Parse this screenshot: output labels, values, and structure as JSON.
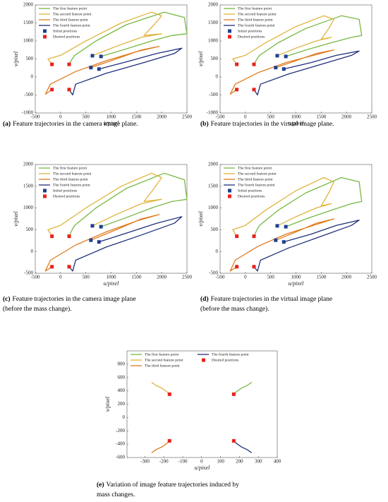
{
  "chart_data": [
    {
      "type": "line",
      "caption_label": "(a)",
      "caption": [
        "Feature trajectories in the camera image plane."
      ],
      "xlabel": "u/pixel",
      "ylabel": "v/pixel",
      "xlim": [
        -500,
        2500
      ],
      "xticks": [
        -500,
        0,
        500,
        1000,
        1500,
        2000,
        2500
      ],
      "ylim": [
        -1000,
        2000
      ],
      "yticks": [
        -1000,
        -500,
        0,
        500,
        1000,
        1500,
        2000
      ],
      "series": [
        {
          "name": "The first feature point",
          "color": "#77b843",
          "x": [
            800,
            1300,
            1800,
            2200,
            2500,
            2450,
            2050,
            1300,
            700,
            280,
            230,
            170
          ],
          "values": [
            570,
            780,
            1000,
            1150,
            1200,
            1650,
            1800,
            1450,
            1000,
            600,
            500,
            350
          ]
        },
        {
          "name": "The second feature point",
          "color": "#e0b43c",
          "x": [
            630,
            1100,
            1600,
            2000,
            1650,
            1850,
            2000,
            1800,
            1200,
            500,
            0,
            -250,
            -170
          ],
          "values": [
            590,
            850,
            1100,
            1200,
            1150,
            1450,
            1700,
            1800,
            1500,
            1000,
            600,
            500,
            350
          ]
        },
        {
          "name": "The third feature point",
          "color": "#e07b1f",
          "x": [
            600,
            1100,
            1600,
            1950,
            1500,
            900,
            300,
            -200,
            -300,
            -170
          ],
          "values": [
            260,
            500,
            750,
            850,
            700,
            450,
            150,
            -200,
            -480,
            -350
          ]
        },
        {
          "name": "The fourth feature point",
          "color": "#1f2f7a",
          "x": [
            760,
            1300,
            1900,
            2400,
            2250,
            1600,
            900,
            300,
            240,
            170
          ],
          "values": [
            220,
            420,
            650,
            800,
            650,
            380,
            100,
            -200,
            -500,
            -350
          ]
        }
      ],
      "points": [
        {
          "name": "Initial positions",
          "color": "#1f3f8f",
          "x": [
            630,
            800,
            600,
            760
          ],
          "values": [
            590,
            570,
            260,
            220
          ]
        },
        {
          "name": "Desired positions",
          "color": "#e8211b",
          "x": [
            -170,
            170,
            -170,
            170
          ],
          "values": [
            350,
            350,
            -350,
            -350
          ]
        }
      ]
    },
    {
      "type": "line",
      "caption_label": "(b)",
      "caption": [
        "Feature trajectories in the virtual image plane."
      ],
      "xlabel": "u/pixel",
      "ylabel": "v/pixel",
      "xlim": [
        -500,
        2500
      ],
      "xticks": [
        -500,
        0,
        500,
        1000,
        1500,
        2000,
        2500
      ],
      "ylim": [
        -1000,
        2000
      ],
      "yticks": [
        -1000,
        -500,
        0,
        500,
        1000,
        1500,
        2000
      ],
      "series": [
        {
          "name": "The first feature point",
          "color": "#77b843",
          "x": [
            800,
            1200,
            1700,
            2100,
            2300,
            2250,
            1900,
            1200,
            650,
            280,
            230,
            170
          ],
          "values": [
            570,
            750,
            950,
            1100,
            1150,
            1600,
            1700,
            1350,
            950,
            600,
            500,
            350
          ]
        },
        {
          "name": "The second feature point",
          "color": "#e0b43c",
          "x": [
            630,
            1000,
            1400,
            1700,
            1500,
            1650,
            1750,
            1550,
            1000,
            400,
            0,
            -250,
            -170
          ],
          "values": [
            590,
            800,
            1000,
            1100,
            1050,
            1350,
            1600,
            1700,
            1400,
            950,
            600,
            500,
            350
          ]
        },
        {
          "name": "The third feature point",
          "color": "#e07b1f",
          "x": [
            600,
            1000,
            1400,
            1750,
            1400,
            800,
            250,
            -200,
            -300,
            -170
          ],
          "values": [
            260,
            450,
            650,
            750,
            620,
            400,
            120,
            -200,
            -480,
            -350
          ]
        },
        {
          "name": "The fourth feature point",
          "color": "#1f2f7a",
          "x": [
            760,
            1300,
            1800,
            2250,
            2100,
            1500,
            850,
            300,
            240,
            170
          ],
          "values": [
            220,
            400,
            600,
            720,
            600,
            350,
            80,
            -200,
            -500,
            -350
          ]
        }
      ],
      "points": [
        {
          "name": "Initial positions",
          "color": "#1f3f8f",
          "x": [
            630,
            800,
            600,
            760
          ],
          "values": [
            590,
            570,
            260,
            220
          ]
        },
        {
          "name": "Desired positions",
          "color": "#e8211b",
          "x": [
            -170,
            170,
            -170,
            170
          ],
          "values": [
            350,
            350,
            -350,
            -350
          ]
        }
      ]
    },
    {
      "type": "line",
      "caption_label": "(c)",
      "caption": [
        "Feature trajectories in the camera image plane",
        "(before the mass change)."
      ],
      "xlabel": "u/pixel",
      "ylabel": "v/pixel",
      "xlim": [
        -500,
        2500
      ],
      "xticks": [
        -500,
        0,
        500,
        1000,
        1500,
        2000,
        2500
      ],
      "ylim": [
        -500,
        2000
      ],
      "yticks": [
        -500,
        0,
        500,
        1000,
        1500,
        2000
      ],
      "series": [
        {
          "name": "The first feature point",
          "color": "#77b843",
          "x": [
            800,
            1300,
            1800,
            2200,
            2500,
            2450,
            2050,
            1300,
            700,
            280,
            230,
            170
          ],
          "values": [
            570,
            780,
            1000,
            1150,
            1200,
            1650,
            1800,
            1450,
            1000,
            600,
            500,
            350
          ]
        },
        {
          "name": "The second feature point",
          "color": "#e0b43c",
          "x": [
            630,
            1100,
            1600,
            2000,
            1650,
            1850,
            2000,
            1800,
            1200,
            500,
            0,
            -250,
            -170
          ],
          "values": [
            590,
            850,
            1100,
            1200,
            1150,
            1450,
            1700,
            1800,
            1500,
            1000,
            600,
            500,
            350
          ]
        },
        {
          "name": "The third feature point",
          "color": "#e07b1f",
          "x": [
            600,
            1100,
            1600,
            1950,
            1500,
            900,
            300,
            -200,
            -300,
            -170
          ],
          "values": [
            260,
            500,
            750,
            850,
            700,
            450,
            150,
            -200,
            -450,
            -350
          ]
        },
        {
          "name": "The fourth feature point",
          "color": "#1f2f7a",
          "x": [
            760,
            1300,
            1900,
            2400,
            2250,
            1600,
            900,
            300,
            240,
            170
          ],
          "values": [
            220,
            420,
            650,
            800,
            650,
            380,
            100,
            -200,
            -450,
            -350
          ]
        }
      ],
      "points": [
        {
          "name": "Initial positions",
          "color": "#1f3f8f",
          "x": [
            630,
            800,
            600,
            760
          ],
          "values": [
            590,
            570,
            260,
            220
          ]
        },
        {
          "name": "Desired positions",
          "color": "#e8211b",
          "x": [
            -170,
            170,
            -170,
            170
          ],
          "values": [
            350,
            350,
            -350,
            -350
          ]
        }
      ]
    },
    {
      "type": "line",
      "caption_label": "(d)",
      "caption": [
        "Feature trajectories in the virtual image plane",
        "(before the mass change)."
      ],
      "xlabel": "u/pixel",
      "ylabel": "v/pixel",
      "xlim": [
        -500,
        2500
      ],
      "xticks": [
        -500,
        0,
        500,
        1000,
        1500,
        2000,
        2500
      ],
      "ylim": [
        -500,
        2000
      ],
      "yticks": [
        -500,
        0,
        500,
        1000,
        1500,
        2000
      ],
      "series": [
        {
          "name": "The first feature point",
          "color": "#77b843",
          "x": [
            800,
            1200,
            1700,
            2100,
            2300,
            2250,
            1900,
            1200,
            650,
            280,
            230,
            170
          ],
          "values": [
            570,
            750,
            950,
            1100,
            1150,
            1600,
            1700,
            1350,
            950,
            600,
            500,
            350
          ]
        },
        {
          "name": "The second feature point",
          "color": "#e0b43c",
          "x": [
            630,
            1000,
            1400,
            1700,
            1500,
            1650,
            1750,
            1550,
            1000,
            400,
            0,
            -250,
            -170
          ],
          "values": [
            590,
            800,
            1000,
            1100,
            1050,
            1350,
            1600,
            1700,
            1400,
            950,
            600,
            500,
            350
          ]
        },
        {
          "name": "The third feature point",
          "color": "#e07b1f",
          "x": [
            600,
            1000,
            1400,
            1750,
            1400,
            800,
            250,
            -200,
            -300,
            -170
          ],
          "values": [
            260,
            450,
            650,
            750,
            620,
            400,
            120,
            -200,
            -450,
            -350
          ]
        },
        {
          "name": "The fourth feature point",
          "color": "#1f2f7a",
          "x": [
            760,
            1300,
            1800,
            2250,
            2100,
            1500,
            850,
            300,
            240,
            170
          ],
          "values": [
            220,
            400,
            600,
            720,
            600,
            350,
            80,
            -200,
            -450,
            -350
          ]
        }
      ],
      "points": [
        {
          "name": "Initial positions",
          "color": "#1f3f8f",
          "x": [
            630,
            800,
            600,
            760
          ],
          "values": [
            590,
            570,
            260,
            220
          ]
        },
        {
          "name": "Desired positions",
          "color": "#e8211b",
          "x": [
            -170,
            170,
            -170,
            170
          ],
          "values": [
            350,
            350,
            -350,
            -350
          ]
        }
      ]
    },
    {
      "type": "line",
      "caption_label": "(e)",
      "caption": [
        "Variation of image feature trajectories induced by",
        "mass changes."
      ],
      "xlabel": "u/pixel",
      "ylabel": "v/pixel",
      "xlim": [
        -395,
        400
      ],
      "xticks": [
        -300,
        -200,
        -100,
        0,
        100,
        200,
        300,
        400
      ],
      "ylim": [
        -600,
        1000
      ],
      "yticks": [
        -600,
        -400,
        -200,
        0,
        200,
        400,
        600,
        800
      ],
      "series": [
        {
          "name": "The first feature point",
          "color": "#77b843",
          "x": [
            265,
            240,
            210,
            185,
            170
          ],
          "values": [
            530,
            480,
            440,
            390,
            350
          ]
        },
        {
          "name": "The second feature point",
          "color": "#e0b43c",
          "x": [
            -265,
            -240,
            -210,
            -185,
            -170
          ],
          "values": [
            530,
            480,
            440,
            390,
            350
          ]
        },
        {
          "name": "The third feature point",
          "color": "#e07b1f",
          "x": [
            -265,
            -240,
            -210,
            -185,
            -170
          ],
          "values": [
            -530,
            -480,
            -440,
            -390,
            -350
          ]
        },
        {
          "name": "The fourth feature point",
          "color": "#1f2f7a",
          "x": [
            265,
            240,
            210,
            185,
            170
          ],
          "values": [
            -530,
            -480,
            -440,
            -390,
            -350
          ]
        }
      ],
      "points": [
        {
          "name": "Desired positions",
          "color": "#e8211b",
          "x": [
            -170,
            170,
            -170,
            170
          ],
          "values": [
            350,
            350,
            -350,
            -350
          ]
        }
      ]
    }
  ]
}
